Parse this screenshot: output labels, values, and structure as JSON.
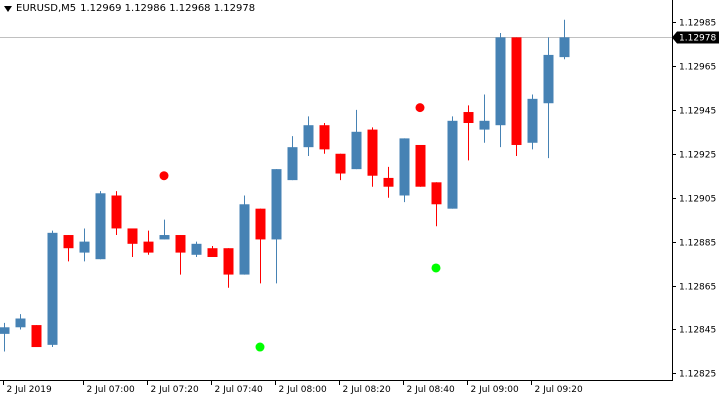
{
  "header": {
    "symbol": "EURUSD,M5",
    "ohlc": "1.12969 1.12986 1.12968 1.12978"
  },
  "colors": {
    "up": "#4682b4",
    "down": "#ff0000",
    "buy_dot": "#00ff00",
    "sell_dot": "#ff0000",
    "price_line": "#c0c0c0",
    "price_label_bg": "#000000",
    "price_label_fg": "#ffffff"
  },
  "chart_data": {
    "type": "candlestick",
    "symbol": "EURUSD",
    "timeframe": "M5",
    "current_price": 1.12978,
    "ylim": [
      1.12822,
      1.12995
    ],
    "y_ticks": [
      1.12985,
      1.12965,
      1.12945,
      1.12925,
      1.12905,
      1.12885,
      1.12865,
      1.12845,
      1.12825
    ],
    "x_ticks": [
      {
        "label": "2 Jul 2019",
        "index": 0
      },
      {
        "label": "2 Jul 07:00",
        "index": 5
      },
      {
        "label": "2 Jul 07:20",
        "index": 9
      },
      {
        "label": "2 Jul 07:40",
        "index": 13
      },
      {
        "label": "2 Jul 08:00",
        "index": 17
      },
      {
        "label": "2 Jul 08:20",
        "index": 21
      },
      {
        "label": "2 Jul 08:40",
        "index": 25
      },
      {
        "label": "2 Jul 09:00",
        "index": 29
      },
      {
        "label": "2 Jul 09:20",
        "index": 33
      }
    ],
    "candles": [
      {
        "o": 1.12843,
        "h": 1.12848,
        "l": 1.12835,
        "c": 1.12846
      },
      {
        "o": 1.12846,
        "h": 1.12852,
        "l": 1.12845,
        "c": 1.1285
      },
      {
        "o": 1.12847,
        "h": 1.12847,
        "l": 1.12837,
        "c": 1.12837
      },
      {
        "o": 1.12838,
        "h": 1.1289,
        "l": 1.12837,
        "c": 1.12889
      },
      {
        "o": 1.12888,
        "h": 1.12888,
        "l": 1.12876,
        "c": 1.12882
      },
      {
        "o": 1.1288,
        "h": 1.12891,
        "l": 1.12876,
        "c": 1.12885
      },
      {
        "o": 1.12877,
        "h": 1.12908,
        "l": 1.12877,
        "c": 1.12907
      },
      {
        "o": 1.12906,
        "h": 1.12908,
        "l": 1.12888,
        "c": 1.12891
      },
      {
        "o": 1.12891,
        "h": 1.12891,
        "l": 1.12878,
        "c": 1.12884
      },
      {
        "o": 1.12885,
        "h": 1.1289,
        "l": 1.12879,
        "c": 1.1288
      },
      {
        "o": 1.12886,
        "h": 1.12895,
        "l": 1.12886,
        "c": 1.12888
      },
      {
        "o": 1.12888,
        "h": 1.12888,
        "l": 1.1287,
        "c": 1.1288
      },
      {
        "o": 1.12879,
        "h": 1.12885,
        "l": 1.12878,
        "c": 1.12884
      },
      {
        "o": 1.12882,
        "h": 1.12883,
        "l": 1.12878,
        "c": 1.12878
      },
      {
        "o": 1.12882,
        "h": 1.12882,
        "l": 1.12864,
        "c": 1.1287
      },
      {
        "o": 1.1287,
        "h": 1.12906,
        "l": 1.1287,
        "c": 1.12902
      },
      {
        "o": 1.129,
        "h": 1.129,
        "l": 1.12866,
        "c": 1.12886
      },
      {
        "o": 1.12886,
        "h": 1.12918,
        "l": 1.12866,
        "c": 1.12918
      },
      {
        "o": 1.12913,
        "h": 1.12933,
        "l": 1.12913,
        "c": 1.12928
      },
      {
        "o": 1.12928,
        "h": 1.12942,
        "l": 1.12924,
        "c": 1.12938
      },
      {
        "o": 1.12938,
        "h": 1.12939,
        "l": 1.12925,
        "c": 1.12927
      },
      {
        "o": 1.12925,
        "h": 1.12925,
        "l": 1.12913,
        "c": 1.12916
      },
      {
        "o": 1.12918,
        "h": 1.12945,
        "l": 1.12918,
        "c": 1.12935
      },
      {
        "o": 1.12936,
        "h": 1.12937,
        "l": 1.1291,
        "c": 1.12915
      },
      {
        "o": 1.12914,
        "h": 1.12919,
        "l": 1.12905,
        "c": 1.1291
      },
      {
        "o": 1.12906,
        "h": 1.12932,
        "l": 1.12903,
        "c": 1.12932
      },
      {
        "o": 1.12929,
        "h": 1.12929,
        "l": 1.1291,
        "c": 1.1291
      },
      {
        "o": 1.12912,
        "h": 1.12912,
        "l": 1.12892,
        "c": 1.12902
      },
      {
        "o": 1.129,
        "h": 1.12942,
        "l": 1.129,
        "c": 1.1294
      },
      {
        "o": 1.12944,
        "h": 1.12947,
        "l": 1.12922,
        "c": 1.12939
      },
      {
        "o": 1.12936,
        "h": 1.12952,
        "l": 1.1293,
        "c": 1.1294
      },
      {
        "o": 1.12938,
        "h": 1.1298,
        "l": 1.12928,
        "c": 1.12978
      },
      {
        "o": 1.12978,
        "h": 1.12978,
        "l": 1.12924,
        "c": 1.12929
      },
      {
        "o": 1.1293,
        "h": 1.12952,
        "l": 1.12927,
        "c": 1.1295
      },
      {
        "o": 1.12948,
        "h": 1.12978,
        "l": 1.12923,
        "c": 1.1297
      },
      {
        "o": 1.12969,
        "h": 1.12986,
        "l": 1.12968,
        "c": 1.12978
      }
    ],
    "signals": [
      {
        "type": "sell",
        "index": 10,
        "price": 1.12915
      },
      {
        "type": "buy",
        "index": 16,
        "price": 1.12837
      },
      {
        "type": "sell",
        "index": 26,
        "price": 1.12946
      },
      {
        "type": "buy",
        "index": 27,
        "price": 1.12873
      }
    ]
  }
}
